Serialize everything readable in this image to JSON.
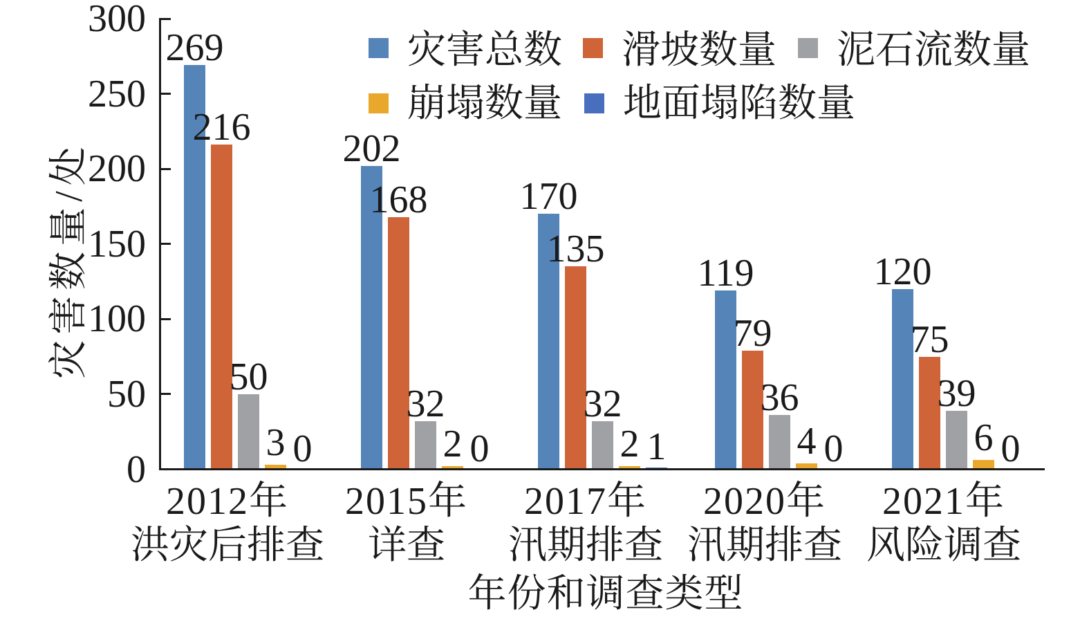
{
  "figure": {
    "background": "#ffffff",
    "text_color": "#1a1a1a",
    "axis_color": "#1a1a1a"
  },
  "chart_data": {
    "type": "bar",
    "title": "",
    "xlabel": "年份和调查类型",
    "ylabel": "灾害数量/处",
    "ylim": [
      0,
      300
    ],
    "yticks": [
      "0",
      "50",
      "100",
      "150",
      "200",
      "250",
      "300"
    ],
    "ytick_values": [
      0,
      50,
      100,
      150,
      200,
      250,
      300
    ],
    "grid": false,
    "legend_position": "top",
    "legend_rows": [
      [
        "灾害总数",
        "滑坡数量",
        "泥石流数量"
      ],
      [
        "崩塌数量",
        "地面塌陷数量"
      ]
    ],
    "categories": [
      {
        "line1": "2012年",
        "line2": "洪灾后排查"
      },
      {
        "line1": "2015年",
        "line2": "详查"
      },
      {
        "line1": "2017年",
        "line2": "汛期排查"
      },
      {
        "line1": "2020年",
        "line2": "汛期排查"
      },
      {
        "line1": "2021年",
        "line2": "风险调查"
      }
    ],
    "series": [
      {
        "name": "灾害总数",
        "color": "#5584B8",
        "values": [
          269,
          202,
          170,
          119,
          120
        ]
      },
      {
        "name": "滑坡数量",
        "color": "#CE6438",
        "values": [
          216,
          168,
          135,
          79,
          75
        ]
      },
      {
        "name": "泥石流数量",
        "color": "#A0A1A4",
        "values": [
          50,
          32,
          32,
          36,
          39
        ]
      },
      {
        "name": "崩塌数量",
        "color": "#E9A82C",
        "values": [
          3,
          2,
          2,
          4,
          6
        ]
      },
      {
        "name": "地面塌陷数量",
        "color": "#4A6EBE",
        "values": [
          0,
          0,
          1,
          0,
          0
        ]
      }
    ]
  }
}
